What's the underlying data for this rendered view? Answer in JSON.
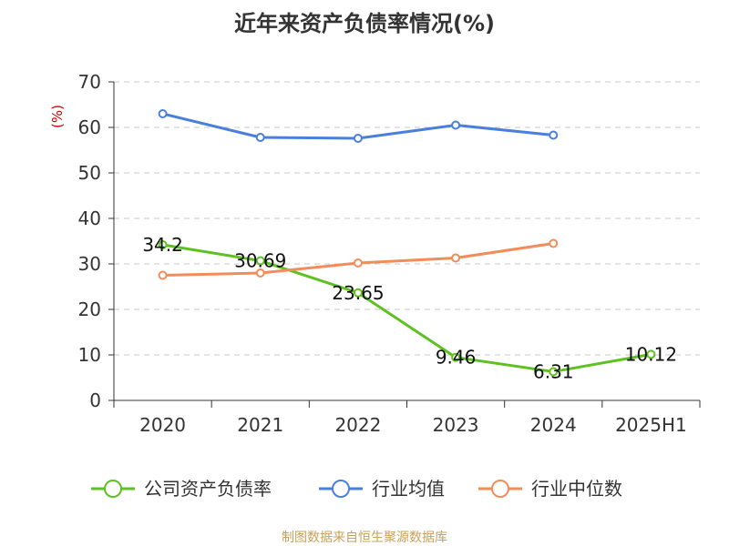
{
  "chart_data": {
    "type": "line",
    "title": "近年来资产负债率情况(%)",
    "ylabel": "(%)",
    "xlabel": "",
    "ylim": [
      0,
      70
    ],
    "y_ticks": [
      0,
      10,
      20,
      30,
      40,
      50,
      60,
      70
    ],
    "grid": true,
    "legend_position": "bottom",
    "categories": [
      "2020",
      "2021",
      "2022",
      "2023",
      "2024",
      "2025H1"
    ],
    "series": [
      {
        "name": "公司资产负债率",
        "color": "#5fc121",
        "values": [
          34.2,
          30.69,
          23.65,
          9.46,
          6.31,
          10.12
        ],
        "show_labels": true
      },
      {
        "name": "行业均值",
        "color": "#4a7fdb",
        "values": [
          63.0,
          57.8,
          57.6,
          60.5,
          58.3,
          null
        ],
        "show_labels": false
      },
      {
        "name": "行业中位数",
        "color": "#f28c5a",
        "values": [
          27.5,
          28.0,
          30.2,
          31.3,
          34.5,
          null
        ],
        "show_labels": false
      }
    ],
    "data_labels": [
      "34.2",
      "30.69",
      "23.65",
      "9.46",
      "6.31",
      "10.12"
    ]
  },
  "source_note": "制图数据来自恒生聚源数据库"
}
